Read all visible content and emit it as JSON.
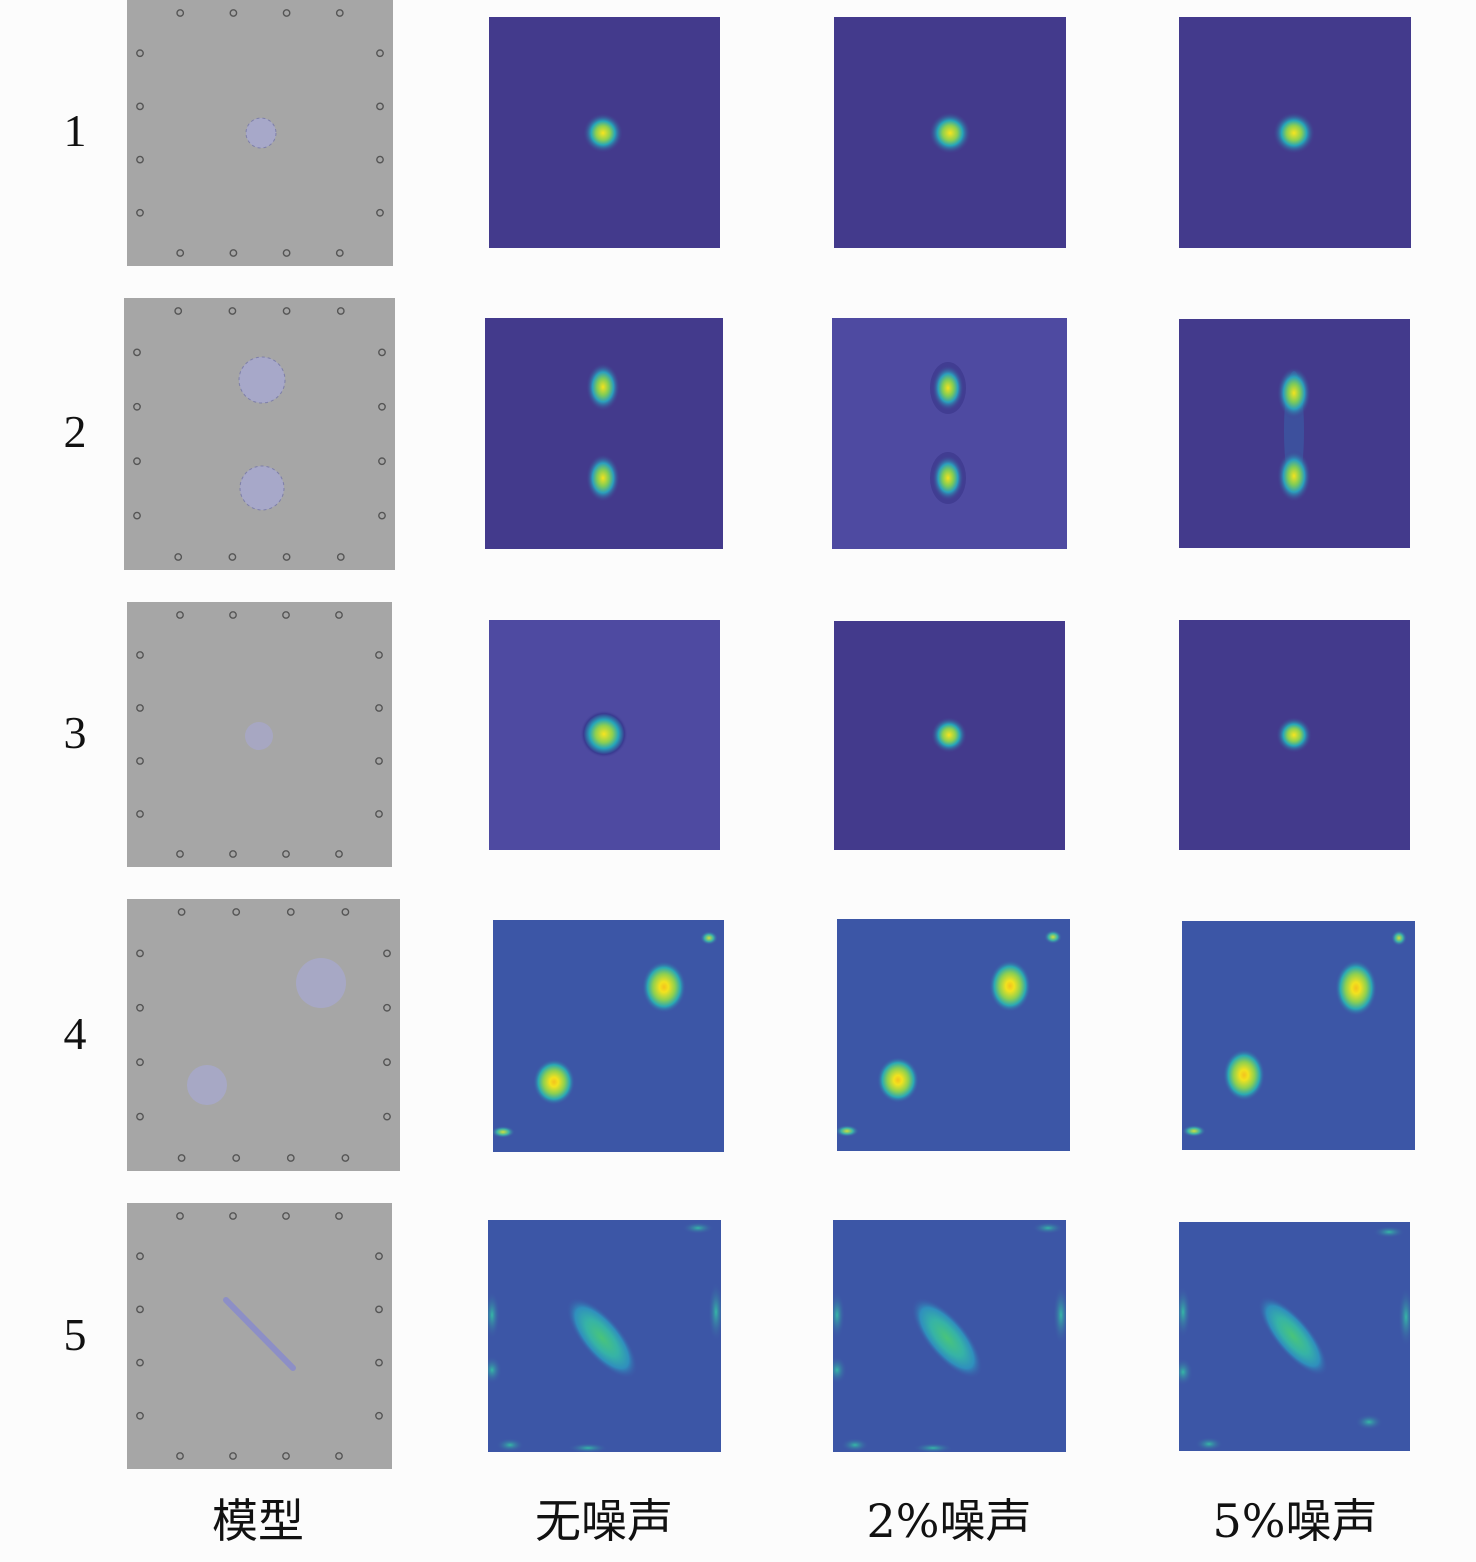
{
  "column_labels": [
    "模型",
    "无噪声",
    "2%噪声",
    "5%噪声"
  ],
  "rows": [
    {
      "label": "1"
    },
    {
      "label": "2"
    },
    {
      "label": "3"
    },
    {
      "label": "4"
    },
    {
      "label": "5"
    }
  ],
  "colors": {
    "model_background": "#a6a6a6",
    "inclusion": "#a7a8c9",
    "electrode": "#555555",
    "map_dark": "#433a8c",
    "map_mid": "#4d4aa1",
    "map_light": "#3c56a6",
    "hot": "#f4e51f"
  }
}
